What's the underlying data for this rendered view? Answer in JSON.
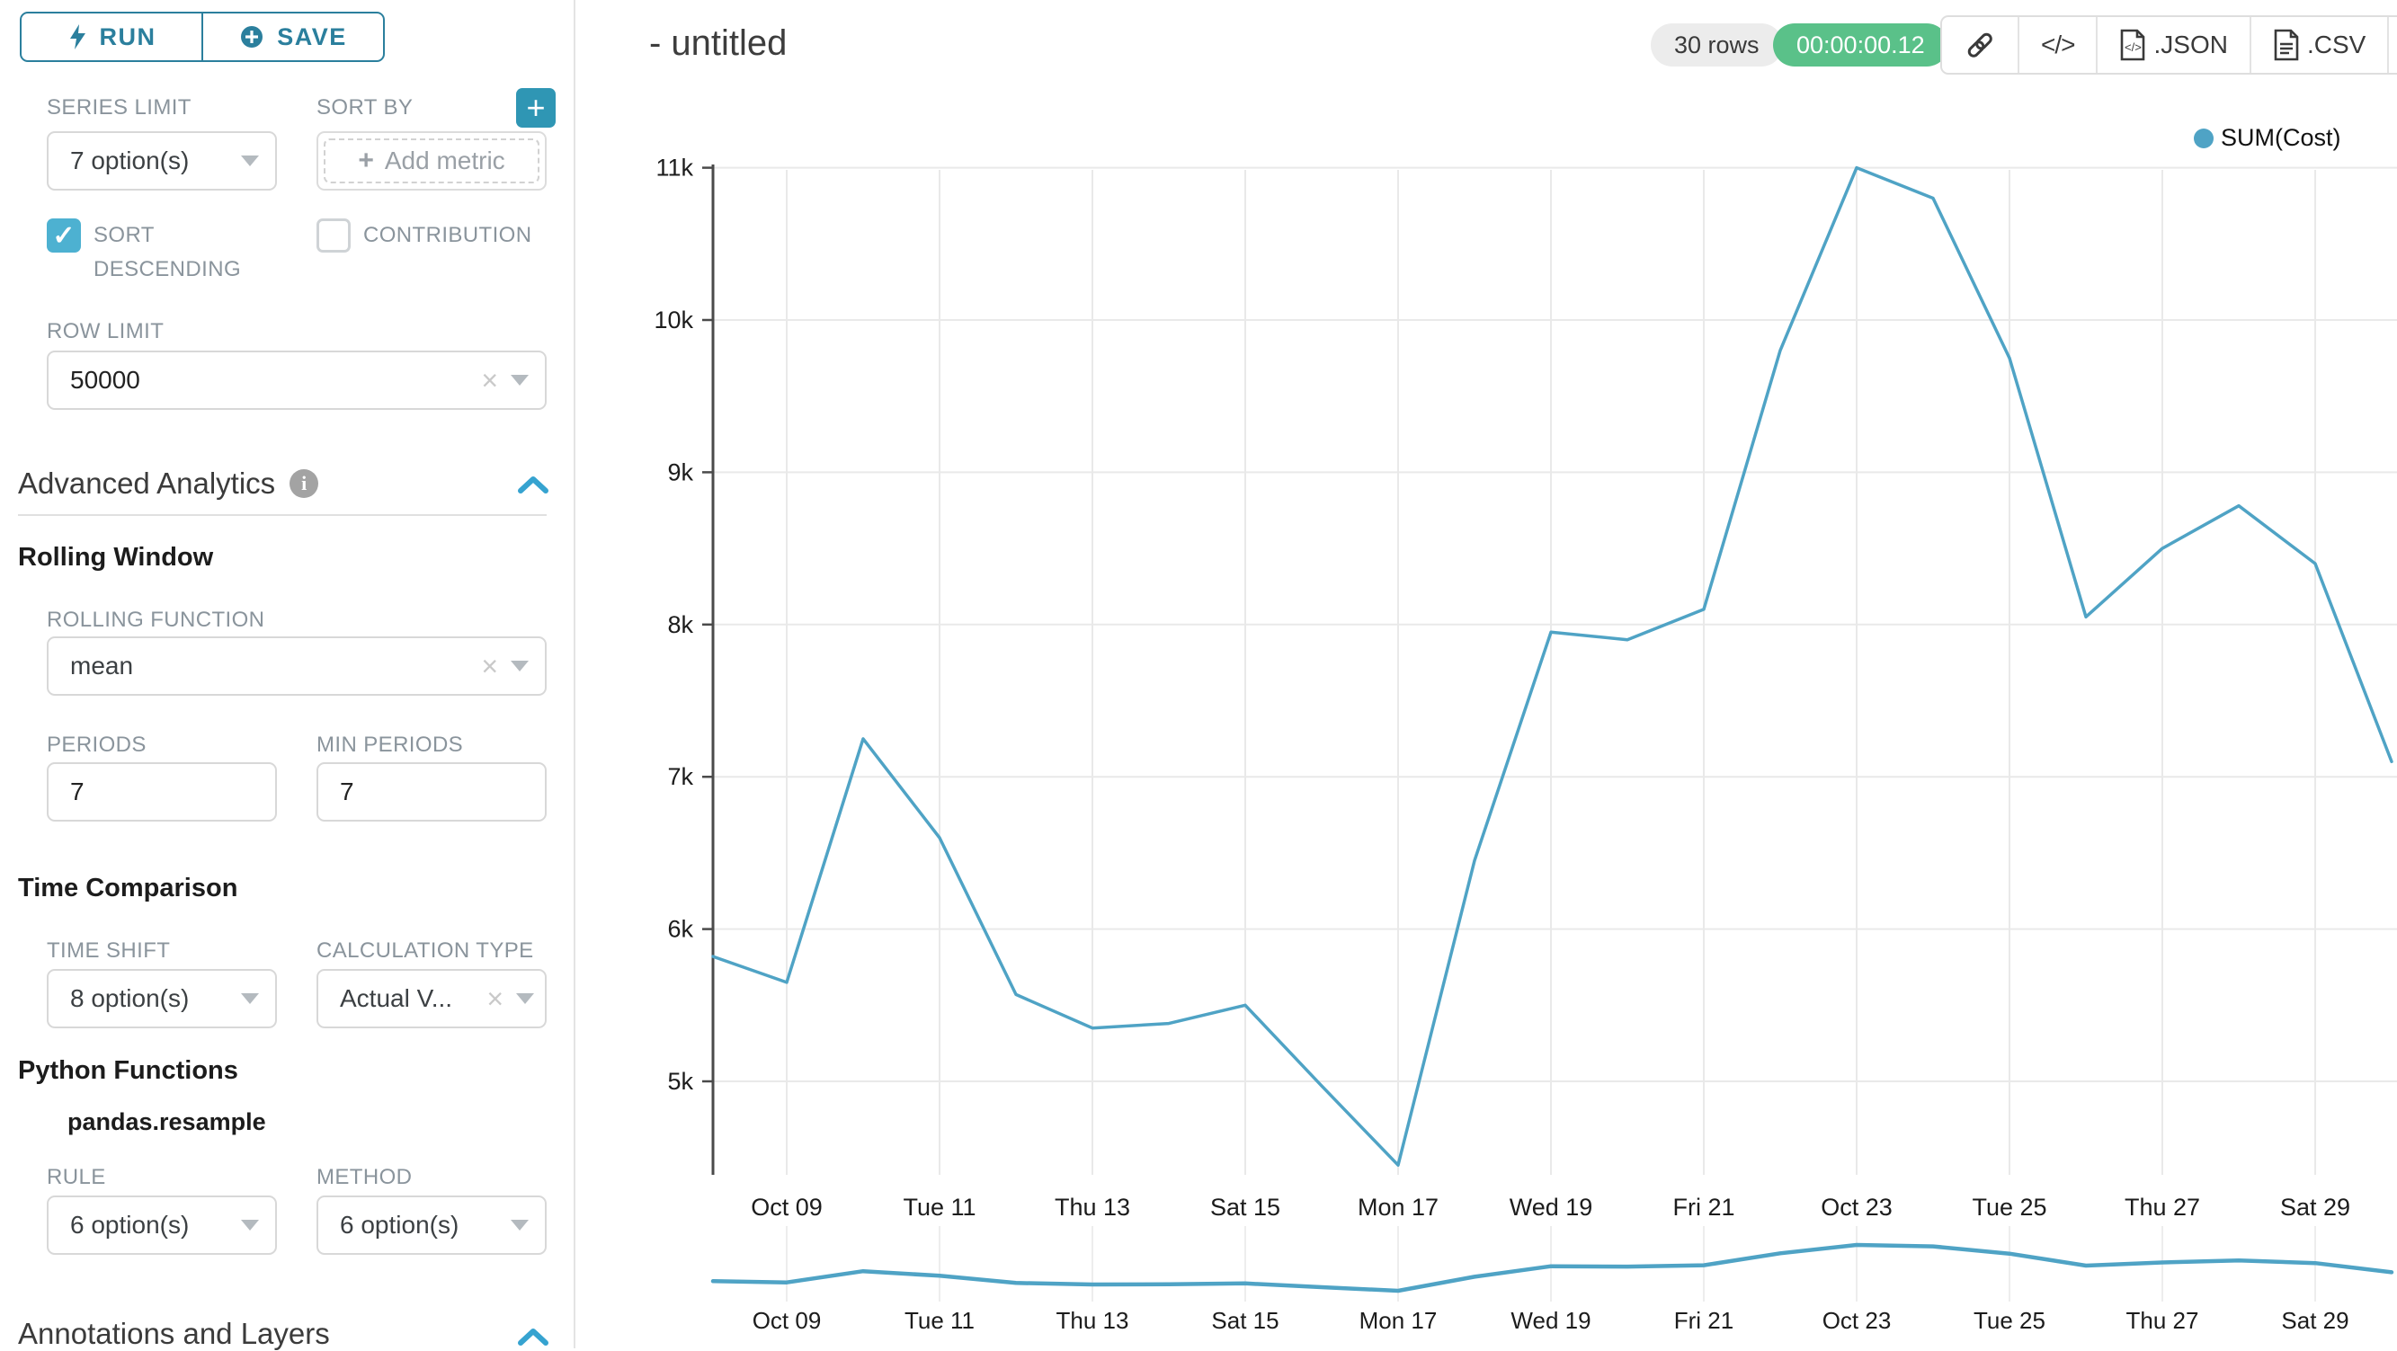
{
  "sidebar": {
    "run_label": "RUN",
    "save_label": "SAVE",
    "query": {
      "series_limit_label": "SERIES LIMIT",
      "series_limit_value": "7 option(s)",
      "sort_by_label": "SORT BY",
      "sort_by_placeholder": "Add metric",
      "sort_descending_label": "SORT DESCENDING",
      "sort_descending_checked": true,
      "contribution_label": "CONTRIBUTION",
      "contribution_checked": false,
      "row_limit_label": "ROW LIMIT",
      "row_limit_value": "50000"
    },
    "advanced_analytics": {
      "title": "Advanced Analytics",
      "rolling_window": {
        "title": "Rolling Window",
        "rolling_function_label": "ROLLING FUNCTION",
        "rolling_function_value": "mean",
        "periods_label": "PERIODS",
        "periods_value": "7",
        "min_periods_label": "MIN PERIODS",
        "min_periods_value": "7"
      },
      "time_comparison": {
        "title": "Time Comparison",
        "time_shift_label": "TIME SHIFT",
        "time_shift_value": "8 option(s)",
        "calculation_type_label": "CALCULATION TYPE",
        "calculation_type_value": "Actual V..."
      },
      "python_functions": {
        "title": "Python Functions",
        "subtitle": "pandas.resample",
        "rule_label": "RULE",
        "rule_value": "6 option(s)",
        "method_label": "METHOD",
        "method_value": "6 option(s)"
      }
    },
    "annotations_title": "Annotations and Layers"
  },
  "header": {
    "title": "- untitled",
    "rows_badge": "30 rows",
    "timer_badge": "00:00:00.12",
    "export_json_label": ".JSON",
    "export_csv_label": ".CSV"
  },
  "colors": {
    "accent": "#2b7f9d",
    "accent_bright": "#36a3d0",
    "checkbox_teal": "#4db1d1",
    "plus_button": "#2f96b4",
    "line": "#4fa3c5",
    "timer_green": "#5ac189",
    "badge_gray": "#ececec",
    "grid": "#e9e9e9",
    "axis": "#4a4a4a"
  },
  "chart_data": {
    "type": "line",
    "title": "",
    "legend": [
      "SUM(Cost)"
    ],
    "legend_position": "top-right",
    "grid": true,
    "x_dates": [
      "Oct 08",
      "Oct 09",
      "Oct 10",
      "Oct 11",
      "Oct 12",
      "Oct 13",
      "Oct 14",
      "Oct 15",
      "Oct 16",
      "Oct 17",
      "Oct 18",
      "Oct 19",
      "Oct 20",
      "Oct 21",
      "Oct 22",
      "Oct 23",
      "Oct 24",
      "Oct 25",
      "Oct 26",
      "Oct 27",
      "Oct 28",
      "Oct 29",
      "Oct 30"
    ],
    "series": [
      {
        "name": "SUM(Cost)",
        "values": [
          5820,
          5650,
          7250,
          6600,
          5570,
          5350,
          5380,
          5500,
          4970,
          4450,
          6450,
          7950,
          7900,
          8100,
          9800,
          11000,
          10800,
          9750,
          8050,
          8500,
          8780,
          8400,
          7100
        ]
      }
    ],
    "x_tick_labels": [
      "Oct 09",
      "Tue 11",
      "Thu 13",
      "Sat 15",
      "Mon 17",
      "Wed 19",
      "Fri 21",
      "Oct 23",
      "Tue 25",
      "Thu 27",
      "Sat 29"
    ],
    "x_tick_day_step": 2,
    "y_tick_labels": [
      "5k",
      "6k",
      "7k",
      "8k",
      "9k",
      "10k",
      "11k"
    ],
    "y_tick_values": [
      5000,
      6000,
      7000,
      8000,
      9000,
      10000,
      11000
    ],
    "ylim": [
      4385,
      11115
    ],
    "xlabel": "",
    "ylabel": "",
    "mini_chart": {
      "x_tick_labels": [
        "Oct 09",
        "Tue 11",
        "Thu 13",
        "Sat 15",
        "Mon 17",
        "Wed 19",
        "Fri 21",
        "Oct 23",
        "Tue 25",
        "Thu 27",
        "Sat 29"
      ]
    }
  }
}
